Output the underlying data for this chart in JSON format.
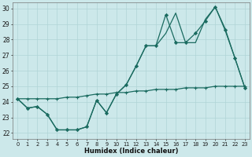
{
  "title": "",
  "xlabel": "Humidex (Indice chaleur)",
  "bg_color": "#cce8ea",
  "grid_color": "#b0d4d6",
  "line_color": "#1a6b60",
  "xlim": [
    -0.5,
    23.5
  ],
  "ylim": [
    21.6,
    30.4
  ],
  "xticks": [
    0,
    1,
    2,
    3,
    4,
    5,
    6,
    7,
    8,
    9,
    10,
    11,
    12,
    13,
    14,
    15,
    16,
    17,
    18,
    19,
    20,
    21,
    22,
    23
  ],
  "yticks": [
    22,
    23,
    24,
    25,
    26,
    27,
    28,
    29,
    30
  ],
  "line1_x": [
    0,
    1,
    2,
    3,
    4,
    5,
    6,
    7,
    8,
    9,
    10,
    11,
    12,
    13,
    14,
    15,
    16,
    17,
    18,
    19,
    20,
    21,
    22,
    23
  ],
  "line1_y": [
    24.2,
    23.6,
    23.7,
    23.2,
    22.2,
    22.2,
    22.2,
    22.4,
    24.1,
    23.3,
    24.5,
    25.1,
    26.3,
    27.6,
    27.6,
    29.6,
    27.8,
    27.8,
    28.4,
    29.2,
    30.1,
    28.6,
    26.8,
    24.9
  ],
  "line2_x": [
    0,
    1,
    2,
    3,
    4,
    5,
    6,
    7,
    8,
    9,
    10,
    11,
    12,
    13,
    14,
    15,
    16,
    17,
    18,
    19,
    20,
    21,
    22,
    23
  ],
  "line2_y": [
    24.2,
    24.2,
    24.2,
    24.2,
    24.2,
    24.3,
    24.3,
    24.4,
    24.5,
    24.5,
    24.6,
    24.6,
    24.7,
    24.7,
    24.8,
    24.8,
    24.8,
    24.9,
    24.9,
    24.9,
    25.0,
    25.0,
    25.0,
    25.0
  ],
  "line3_x": [
    0,
    1,
    2,
    3,
    4,
    5,
    6,
    7,
    8,
    9,
    10,
    11,
    12,
    13,
    14,
    15,
    16,
    17,
    18,
    19,
    20,
    21,
    22,
    23
  ],
  "line3_y": [
    24.2,
    23.6,
    23.7,
    23.2,
    22.2,
    22.2,
    22.2,
    22.4,
    24.1,
    23.3,
    24.5,
    25.1,
    26.3,
    27.6,
    27.6,
    28.4,
    29.7,
    27.8,
    27.8,
    29.3,
    30.1,
    28.7,
    26.8,
    24.9
  ]
}
